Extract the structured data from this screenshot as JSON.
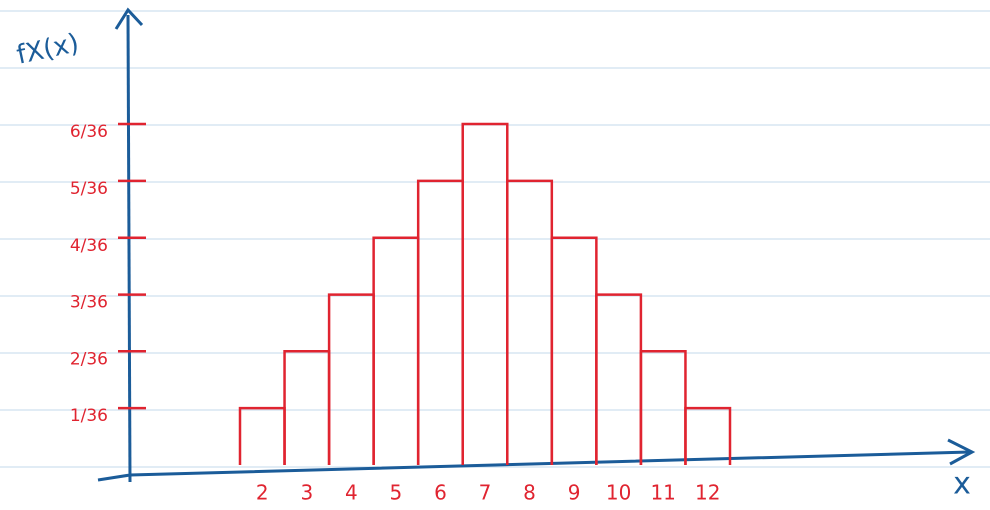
{
  "chart_data": {
    "type": "bar",
    "y_label": "fX(x)",
    "x_label": "x",
    "categories": [
      "2",
      "3",
      "4",
      "5",
      "6",
      "7",
      "8",
      "9",
      "10",
      "11",
      "12"
    ],
    "values": [
      0.0278,
      0.0556,
      0.0833,
      0.1111,
      0.1389,
      0.1667,
      0.1389,
      0.1111,
      0.0833,
      0.0556,
      0.0278
    ],
    "color": "#e02430",
    "axis_color": "#1b5c99",
    "ylim": [
      0,
      0.22
    ],
    "yticks": [
      {
        "value": 0.0278,
        "label": "1/36"
      },
      {
        "value": 0.0556,
        "label": "2/36"
      },
      {
        "value": 0.0833,
        "label": "3/36"
      },
      {
        "value": 0.1111,
        "label": "4/36"
      },
      {
        "value": 0.1389,
        "label": "5/36"
      },
      {
        "value": 0.1667,
        "label": "6/36"
      }
    ]
  }
}
